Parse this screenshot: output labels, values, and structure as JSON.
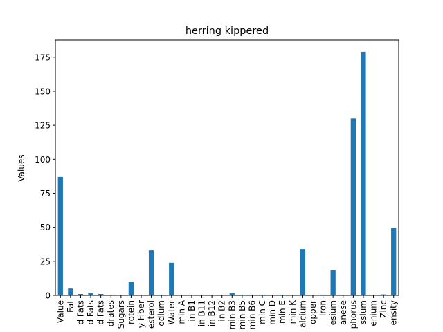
{
  "chart_data": {
    "type": "bar",
    "title": "herring kippered",
    "xlabel": "",
    "ylabel": "Values",
    "ylim": [
      0,
      187.6
    ],
    "yticks": [
      0,
      25,
      50,
      75,
      100,
      125,
      150,
      175
    ],
    "grid": false,
    "legend": "none",
    "bar_color": "#1f77b4",
    "categories": [
      "Value",
      "Fat",
      "d Fats",
      "d Fats",
      "d Fats",
      "drates",
      "Sugars",
      "rotein",
      "y Fiber",
      "esterol",
      "odium",
      "Water",
      "min A",
      "in B1",
      "in B11",
      "in B12",
      "in B2",
      "min B3",
      "min B5",
      "min B6",
      "min C",
      "min D",
      "min E",
      "min K",
      "alcium",
      "opper",
      "Iron",
      "esium",
      "anese",
      "phorus",
      "ssium",
      "enium",
      "Zinc",
      "ensity"
    ],
    "values": [
      87,
      5,
      1,
      2,
      1,
      0,
      0,
      10,
      0,
      33,
      0.5,
      24,
      0,
      0,
      0,
      0,
      0,
      1.5,
      0.5,
      0.3,
      0.5,
      0,
      0.5,
      0,
      34,
      0,
      0.5,
      18.5,
      0,
      130,
      179,
      0,
      0.7,
      49.5
    ]
  }
}
